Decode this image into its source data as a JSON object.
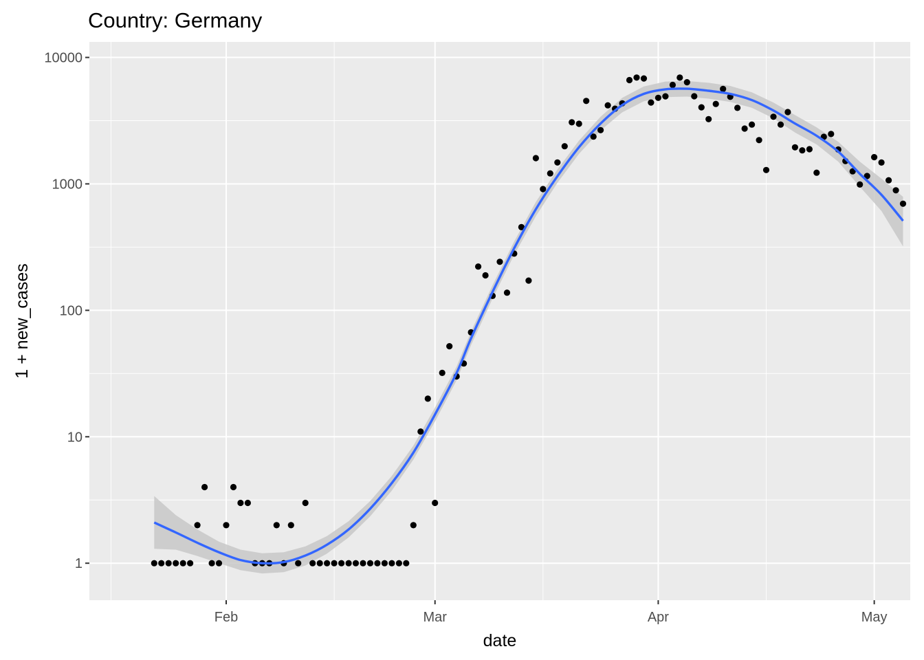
{
  "chart_data": {
    "type": "scatter",
    "title": "Country: Germany",
    "xlabel": "date",
    "ylabel": "1 + new_cases",
    "x_scale": "date",
    "y_scale": "log10",
    "xlim": [
      "2020-01-13",
      "2020-05-06"
    ],
    "ylim": [
      0.51,
      13260
    ],
    "x_ticks": [
      {
        "date": "2020-02-01",
        "label": "Feb"
      },
      {
        "date": "2020-03-01",
        "label": "Mar"
      },
      {
        "date": "2020-04-01",
        "label": "Apr"
      },
      {
        "date": "2020-05-01",
        "label": "May"
      }
    ],
    "x_minor_ticks": [
      "2020-01-16",
      "2020-02-16",
      "2020-03-16",
      "2020-04-16"
    ],
    "y_ticks": [
      {
        "value": 1,
        "label": "1"
      },
      {
        "value": 10,
        "label": "10"
      },
      {
        "value": 100,
        "label": "100"
      },
      {
        "value": 1000,
        "label": "1000"
      },
      {
        "value": 10000,
        "label": "10000"
      }
    ],
    "grid": true,
    "colors": {
      "panel": "#ebebeb",
      "grid": "#ffffff",
      "point": "#000000",
      "smooth_line": "#3366ff",
      "confidence_band": "#c8c8c8"
    },
    "series": [
      {
        "points": [
          [
            "2020-01-22",
            1
          ],
          [
            "2020-01-23",
            1
          ],
          [
            "2020-01-24",
            1
          ],
          [
            "2020-01-25",
            1
          ],
          [
            "2020-01-26",
            1
          ],
          [
            "2020-01-27",
            1
          ],
          [
            "2020-01-28",
            2
          ],
          [
            "2020-01-29",
            4
          ],
          [
            "2020-01-30",
            1
          ],
          [
            "2020-01-31",
            1
          ],
          [
            "2020-02-01",
            2
          ],
          [
            "2020-02-02",
            4
          ],
          [
            "2020-02-03",
            3
          ],
          [
            "2020-02-04",
            3
          ],
          [
            "2020-02-05",
            1
          ],
          [
            "2020-02-06",
            1
          ],
          [
            "2020-02-07",
            1
          ],
          [
            "2020-02-08",
            2
          ],
          [
            "2020-02-09",
            1
          ],
          [
            "2020-02-10",
            2
          ],
          [
            "2020-02-11",
            1
          ],
          [
            "2020-02-12",
            3
          ],
          [
            "2020-02-13",
            1
          ],
          [
            "2020-02-14",
            1
          ],
          [
            "2020-02-15",
            1
          ],
          [
            "2020-02-16",
            1
          ],
          [
            "2020-02-17",
            1
          ],
          [
            "2020-02-18",
            1
          ],
          [
            "2020-02-19",
            1
          ],
          [
            "2020-02-20",
            1
          ],
          [
            "2020-02-21",
            1
          ],
          [
            "2020-02-22",
            1
          ],
          [
            "2020-02-23",
            1
          ],
          [
            "2020-02-24",
            1
          ],
          [
            "2020-02-25",
            1
          ],
          [
            "2020-02-26",
            1
          ],
          [
            "2020-02-27",
            2
          ],
          [
            "2020-02-28",
            11
          ],
          [
            "2020-02-29",
            20
          ],
          [
            "2020-03-01",
            3
          ],
          [
            "2020-03-02",
            32
          ],
          [
            "2020-03-03",
            52
          ],
          [
            "2020-03-04",
            30
          ],
          [
            "2020-03-05",
            38
          ],
          [
            "2020-03-06",
            67
          ],
          [
            "2020-03-07",
            222
          ],
          [
            "2020-03-08",
            189
          ],
          [
            "2020-03-09",
            130
          ],
          [
            "2020-03-10",
            242
          ],
          [
            "2020-03-11",
            138
          ],
          [
            "2020-03-12",
            281
          ],
          [
            "2020-03-13",
            455
          ],
          [
            "2020-03-14",
            172
          ],
          [
            "2020-03-15",
            1598
          ],
          [
            "2020-03-16",
            910
          ],
          [
            "2020-03-17",
            1210
          ],
          [
            "2020-03-18",
            1478
          ],
          [
            "2020-03-19",
            1985
          ],
          [
            "2020-03-20",
            3070
          ],
          [
            "2020-03-21",
            2990
          ],
          [
            "2020-03-22",
            4528
          ],
          [
            "2020-03-23",
            2365
          ],
          [
            "2020-03-24",
            2660
          ],
          [
            "2020-03-25",
            4183
          ],
          [
            "2020-03-26",
            3930
          ],
          [
            "2020-03-27",
            4337
          ],
          [
            "2020-03-28",
            6615
          ],
          [
            "2020-03-29",
            6933
          ],
          [
            "2020-03-30",
            6824
          ],
          [
            "2020-03-31",
            4400
          ],
          [
            "2020-04-01",
            4790
          ],
          [
            "2020-04-02",
            4923
          ],
          [
            "2020-04-03",
            6064
          ],
          [
            "2020-04-04",
            6922
          ],
          [
            "2020-04-05",
            6365
          ],
          [
            "2020-04-06",
            4933
          ],
          [
            "2020-04-07",
            4031
          ],
          [
            "2020-04-08",
            3251
          ],
          [
            "2020-04-09",
            4289
          ],
          [
            "2020-04-10",
            5633
          ],
          [
            "2020-04-11",
            4885
          ],
          [
            "2020-04-12",
            3990
          ],
          [
            "2020-04-13",
            2737
          ],
          [
            "2020-04-14",
            2946
          ],
          [
            "2020-04-15",
            2218
          ],
          [
            "2020-04-16",
            1287
          ],
          [
            "2020-04-17",
            3394
          ],
          [
            "2020-04-18",
            2945
          ],
          [
            "2020-04-19",
            3699
          ],
          [
            "2020-04-20",
            1945
          ],
          [
            "2020-04-21",
            1842
          ],
          [
            "2020-04-22",
            1881
          ],
          [
            "2020-04-23",
            1226
          ],
          [
            "2020-04-24",
            2357
          ],
          [
            "2020-04-25",
            2481
          ],
          [
            "2020-04-26",
            1870
          ],
          [
            "2020-04-27",
            1514
          ],
          [
            "2020-04-28",
            1257
          ],
          [
            "2020-04-29",
            988
          ],
          [
            "2020-04-30",
            1154
          ],
          [
            "2020-05-01",
            1627
          ],
          [
            "2020-05-02",
            1475
          ],
          [
            "2020-05-03",
            1068
          ],
          [
            "2020-05-04",
            890
          ],
          [
            "2020-05-05",
            697
          ]
        ]
      }
    ],
    "smooth": {
      "method": "loess",
      "fit": [
        [
          "2020-01-22",
          2.1
        ],
        [
          "2020-01-25",
          1.75
        ],
        [
          "2020-01-28",
          1.45
        ],
        [
          "2020-01-31",
          1.22
        ],
        [
          "2020-02-03",
          1.06
        ],
        [
          "2020-02-06",
          1.0
        ],
        [
          "2020-02-09",
          1.02
        ],
        [
          "2020-02-12",
          1.15
        ],
        [
          "2020-02-15",
          1.4
        ],
        [
          "2020-02-18",
          1.85
        ],
        [
          "2020-02-21",
          2.7
        ],
        [
          "2020-02-24",
          4.3
        ],
        [
          "2020-02-27",
          7.5
        ],
        [
          "2020-03-01",
          15
        ],
        [
          "2020-03-04",
          32
        ],
        [
          "2020-03-06",
          60
        ],
        [
          "2020-03-09",
          140
        ],
        [
          "2020-03-12",
          310
        ],
        [
          "2020-03-15",
          630
        ],
        [
          "2020-03-18",
          1150
        ],
        [
          "2020-03-21",
          1950
        ],
        [
          "2020-03-24",
          3000
        ],
        [
          "2020-03-27",
          4200
        ],
        [
          "2020-03-30",
          5150
        ],
        [
          "2020-04-02",
          5600
        ],
        [
          "2020-04-05",
          5650
        ],
        [
          "2020-04-08",
          5450
        ],
        [
          "2020-04-11",
          5150
        ],
        [
          "2020-04-14",
          4600
        ],
        [
          "2020-04-17",
          3800
        ],
        [
          "2020-04-20",
          3000
        ],
        [
          "2020-04-23",
          2400
        ],
        [
          "2020-04-26",
          1800
        ],
        [
          "2020-04-29",
          1200
        ],
        [
          "2020-05-02",
          820
        ],
        [
          "2020-05-05",
          510
        ]
      ],
      "ci_upper": [
        [
          "2020-01-22",
          3.4
        ],
        [
          "2020-01-25",
          2.4
        ],
        [
          "2020-01-28",
          1.85
        ],
        [
          "2020-01-31",
          1.48
        ],
        [
          "2020-02-03",
          1.28
        ],
        [
          "2020-02-06",
          1.2
        ],
        [
          "2020-02-09",
          1.22
        ],
        [
          "2020-02-12",
          1.36
        ],
        [
          "2020-02-15",
          1.64
        ],
        [
          "2020-02-18",
          2.15
        ],
        [
          "2020-02-21",
          3.1
        ],
        [
          "2020-02-24",
          4.9
        ],
        [
          "2020-02-27",
          8.5
        ],
        [
          "2020-03-01",
          17
        ],
        [
          "2020-03-04",
          36
        ],
        [
          "2020-03-06",
          68
        ],
        [
          "2020-03-09",
          158
        ],
        [
          "2020-03-12",
          350
        ],
        [
          "2020-03-15",
          720
        ],
        [
          "2020-03-18",
          1300
        ],
        [
          "2020-03-21",
          2200
        ],
        [
          "2020-03-24",
          3400
        ],
        [
          "2020-03-27",
          4800
        ],
        [
          "2020-03-30",
          5900
        ],
        [
          "2020-04-02",
          6450
        ],
        [
          "2020-04-05",
          6500
        ],
        [
          "2020-04-08",
          6300
        ],
        [
          "2020-04-11",
          5950
        ],
        [
          "2020-04-14",
          5300
        ],
        [
          "2020-04-17",
          4400
        ],
        [
          "2020-04-20",
          3500
        ],
        [
          "2020-04-23",
          2800
        ],
        [
          "2020-04-26",
          2150
        ],
        [
          "2020-04-29",
          1500
        ],
        [
          "2020-05-02",
          1100
        ],
        [
          "2020-05-05",
          790
        ]
      ],
      "ci_lower": [
        [
          "2020-01-22",
          1.3
        ],
        [
          "2020-01-25",
          1.28
        ],
        [
          "2020-01-28",
          1.14
        ],
        [
          "2020-01-31",
          1.0
        ],
        [
          "2020-02-03",
          0.88
        ],
        [
          "2020-02-06",
          0.83
        ],
        [
          "2020-02-09",
          0.85
        ],
        [
          "2020-02-12",
          0.96
        ],
        [
          "2020-02-15",
          1.19
        ],
        [
          "2020-02-18",
          1.6
        ],
        [
          "2020-02-21",
          2.35
        ],
        [
          "2020-02-24",
          3.75
        ],
        [
          "2020-02-27",
          6.6
        ],
        [
          "2020-03-01",
          13.2
        ],
        [
          "2020-03-04",
          28
        ],
        [
          "2020-03-06",
          53
        ],
        [
          "2020-03-09",
          124
        ],
        [
          "2020-03-12",
          275
        ],
        [
          "2020-03-15",
          555
        ],
        [
          "2020-03-18",
          1020
        ],
        [
          "2020-03-21",
          1730
        ],
        [
          "2020-03-24",
          2650
        ],
        [
          "2020-03-27",
          3680
        ],
        [
          "2020-03-30",
          4500
        ],
        [
          "2020-04-02",
          4850
        ],
        [
          "2020-04-05",
          4900
        ],
        [
          "2020-04-08",
          4720
        ],
        [
          "2020-04-11",
          4450
        ],
        [
          "2020-04-14",
          4000
        ],
        [
          "2020-04-17",
          3300
        ],
        [
          "2020-04-20",
          2550
        ],
        [
          "2020-04-23",
          2050
        ],
        [
          "2020-04-26",
          1500
        ],
        [
          "2020-04-29",
          950
        ],
        [
          "2020-05-02",
          610
        ],
        [
          "2020-05-05",
          320
        ]
      ]
    }
  }
}
